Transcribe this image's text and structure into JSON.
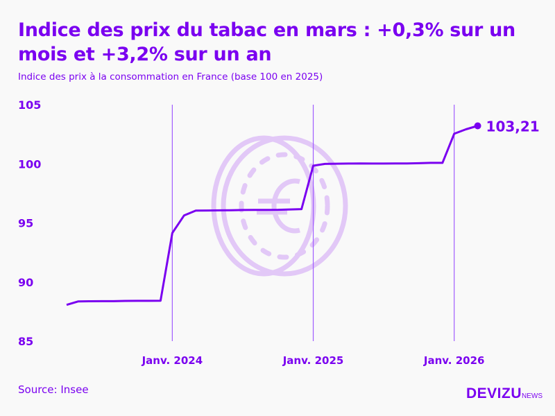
{
  "title": "Indice des prix du tabac en mars : +0,3% sur un mois et +3,2% sur un an",
  "subtitle": "Indice des prix à la consommation en France (base 100 en 2025)",
  "source": "Source: Insee",
  "logo": {
    "main": "DEVIZU",
    "sub": "NEWS"
  },
  "colors": {
    "line": "#7a00f0",
    "text": "#7a00f0",
    "gridline": "#a05cff",
    "watermark": "#e2c8f7"
  },
  "watermark_icon": "euro-coin-icon",
  "chart_data": {
    "type": "line",
    "title": "Indice des prix du tabac en mars : +0,3% sur un mois et +3,2% sur un an",
    "subtitle": "Indice des prix à la consommation en France (base 100 en 2025)",
    "ylim": [
      85,
      105
    ],
    "yticks": [
      "85",
      "90",
      "95",
      "100",
      "105"
    ],
    "xtick_labels": [
      {
        "label": "Janv. 2024",
        "date": "2024-01"
      },
      {
        "label": "Janv. 2025",
        "date": "2025-01"
      },
      {
        "label": "Janv. 2026",
        "date": "2026-01"
      }
    ],
    "grid": "vertical lines at January",
    "x": [
      "2023-04",
      "2023-05",
      "2023-06",
      "2023-07",
      "2023-08",
      "2023-09",
      "2023-10",
      "2023-11",
      "2023-12",
      "2024-01",
      "2024-02",
      "2024-03",
      "2024-04",
      "2024-05",
      "2024-06",
      "2024-07",
      "2024-08",
      "2024-09",
      "2024-10",
      "2024-11",
      "2024-12",
      "2025-01",
      "2025-02",
      "2025-03",
      "2025-04",
      "2025-05",
      "2025-06",
      "2025-07",
      "2025-08",
      "2025-09",
      "2025-10",
      "2025-11",
      "2025-12",
      "2026-01",
      "2026-02",
      "2026-03"
    ],
    "values": [
      88.07,
      88.36,
      88.37,
      88.38,
      88.38,
      88.4,
      88.41,
      88.41,
      88.42,
      94.15,
      95.63,
      96.04,
      96.05,
      96.06,
      96.07,
      96.09,
      96.1,
      96.1,
      96.11,
      96.14,
      96.17,
      99.84,
      99.99,
      100.01,
      100.02,
      100.03,
      100.02,
      100.02,
      100.03,
      100.03,
      100.05,
      100.08,
      100.08,
      102.54,
      102.92,
      103.21
    ],
    "last_label": "103,21"
  }
}
